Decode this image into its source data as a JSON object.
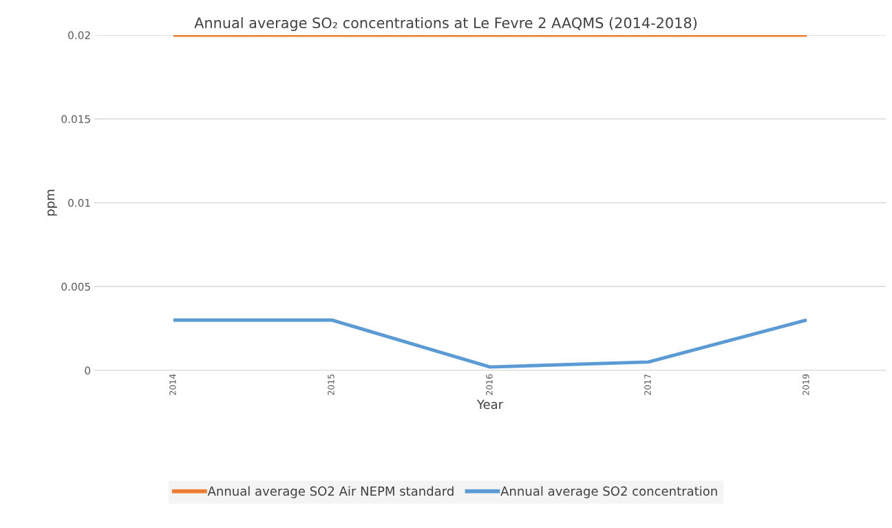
{
  "chart_data": {
    "type": "line",
    "title": "Annual average SO₂ concentrations at Le Fevre 2 AAQMS (2014-2018)",
    "xlabel": "Year",
    "ylabel": "ppm",
    "categories": [
      "2014",
      "2015",
      "2016",
      "2017",
      "2019"
    ],
    "series": [
      {
        "name": "Annual average SO2 Air NEPM standard",
        "color": "#ed7d31",
        "values": [
          0.02,
          0.02,
          0.02,
          0.02,
          0.02
        ]
      },
      {
        "name": "Annual average SO2 concentration",
        "color": "#5b9bd5",
        "values": [
          0.003,
          0.003,
          0.0002,
          0.0005,
          0.003
        ]
      }
    ],
    "ylim": [
      0,
      0.02
    ],
    "yticks": [
      0,
      0.005,
      0.01,
      0.015,
      0.02
    ],
    "grid": "y",
    "legend": "bottom",
    "marker": "none",
    "line_style": "solid"
  }
}
